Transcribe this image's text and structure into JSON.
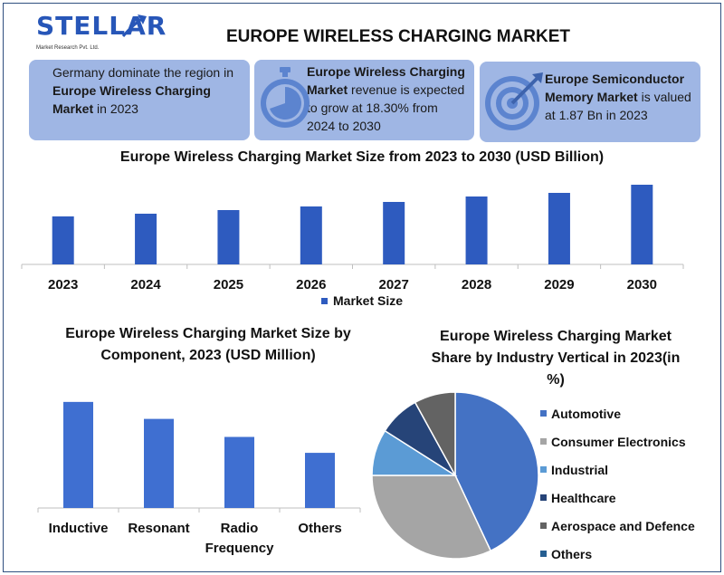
{
  "logo": {
    "brand": "STELLAR",
    "tagline": "Market Research Pvt. Ltd."
  },
  "title": "EUROPE WIRELESS CHARGING MARKET",
  "cards": [
    {
      "text_before": "Germany dominate the region in ",
      "bold": "Europe Wireless Charging Market",
      "text_after": " in 2023",
      "icon": "none"
    },
    {
      "bold": "Europe Wireless Charging Market",
      "text_after": " revenue is expected to grow at 18.30% from 2024 to 2030",
      "icon": "stopwatch-icon"
    },
    {
      "bold": "Europe Semiconductor Memory Market",
      "text_after": " is valued at 1.87 Bn in 2023",
      "icon": "target-icon"
    }
  ],
  "colors": {
    "card_bg": "#9fb6e4",
    "bar_blue": "#2e5bbf",
    "bar_blue_light": "#3f6fd1",
    "icon_blue": "#5c84cf"
  },
  "chart_data": [
    {
      "type": "bar",
      "title": "Europe Wireless Charging Market Size from 2023 to 2030 (USD Billion)",
      "categories": [
        "2023",
        "2024",
        "2025",
        "2026",
        "2027",
        "2028",
        "2029",
        "2030"
      ],
      "series": [
        {
          "name": "Market Size",
          "values": [
            53,
            56,
            60,
            64,
            69,
            75,
            79,
            88
          ]
        }
      ],
      "ylim": [
        0,
        100
      ],
      "legend": "bottom",
      "grid": false,
      "yaxis_labels": false
    },
    {
      "type": "bar",
      "title": "Europe Wireless Charging Market Size by Component, 2023 (USD Million)",
      "categories": [
        "Inductive",
        "Resonant",
        "Radio Frequency",
        "Others"
      ],
      "category_lines": [
        [
          "Inductive"
        ],
        [
          "Resonant"
        ],
        [
          "Radio",
          "Frequency"
        ],
        [
          "Others"
        ]
      ],
      "values": [
        100,
        84,
        67,
        52
      ],
      "ylim": [
        0,
        105
      ],
      "grid": false,
      "yaxis_labels": false
    },
    {
      "type": "pie",
      "title": "Europe Wireless Charging Market Share by Industry Vertical in 2023(in %)",
      "title_lines": [
        "Europe Wireless Charging Market",
        "Share by Industry Vertical in 2023(in",
        "%)"
      ],
      "labels": [
        "Automotive",
        "Consumer Electronics",
        "Industrial",
        "Healthcare",
        "Aerospace and Defence",
        "Others"
      ],
      "values": [
        43,
        32,
        9,
        8,
        8,
        0
      ],
      "colors": [
        "#4472c4",
        "#a5a5a5",
        "#5b9bd5",
        "#264478",
        "#636363",
        "#255e91"
      ],
      "legend": "right"
    }
  ]
}
